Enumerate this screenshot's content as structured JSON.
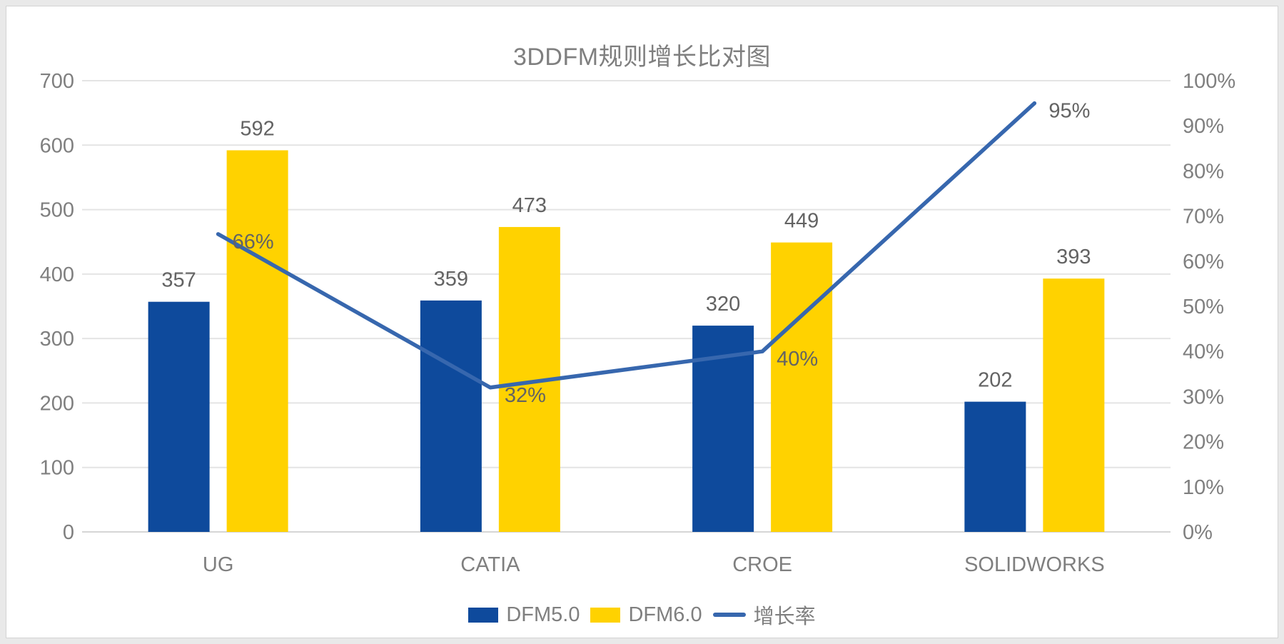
{
  "window": {
    "background": "#e9e9e9",
    "card_background": "#ffffff",
    "card_border": "#d4d4d4"
  },
  "chart_data": {
    "type": "combo-bar-line",
    "title": "3DDFM规则增长比对图",
    "categories": [
      "UG",
      "CATIA",
      "CROE",
      "SOLIDWORKS"
    ],
    "series": [
      {
        "name": "DFM5.0",
        "type": "bar",
        "axis": "left",
        "color": "#0e4a9c",
        "values": [
          357,
          359,
          320,
          202
        ],
        "value_labels": [
          "357",
          "359",
          "320",
          "202"
        ]
      },
      {
        "name": "DFM6.0",
        "type": "bar",
        "axis": "left",
        "color": "#ffd200",
        "values": [
          592,
          473,
          449,
          393
        ],
        "value_labels": [
          "592",
          "473",
          "449",
          "393"
        ]
      },
      {
        "name": "增长率",
        "type": "line",
        "axis": "right",
        "color": "#3767ae",
        "values": [
          0.66,
          0.32,
          0.4,
          0.95
        ],
        "value_labels": [
          "66%",
          "32%",
          "40%",
          "95%"
        ]
      }
    ],
    "left_axis": {
      "min": 0,
      "max": 700,
      "step": 100,
      "tick_labels": [
        "0",
        "100",
        "200",
        "300",
        "400",
        "500",
        "600",
        "700"
      ]
    },
    "right_axis": {
      "min": 0,
      "max": 1,
      "step": 0.1,
      "tick_labels": [
        "0%",
        "10%",
        "20%",
        "30%",
        "40%",
        "50%",
        "60%",
        "70%",
        "80%",
        "90%",
        "100%"
      ]
    },
    "grid": true,
    "legend_position": "bottom",
    "colors": {
      "axis_text": "#7f7f7f",
      "data_label_text": "#636363",
      "gridline": "#e4e4e4",
      "baseline": "#d6d6d6"
    }
  }
}
